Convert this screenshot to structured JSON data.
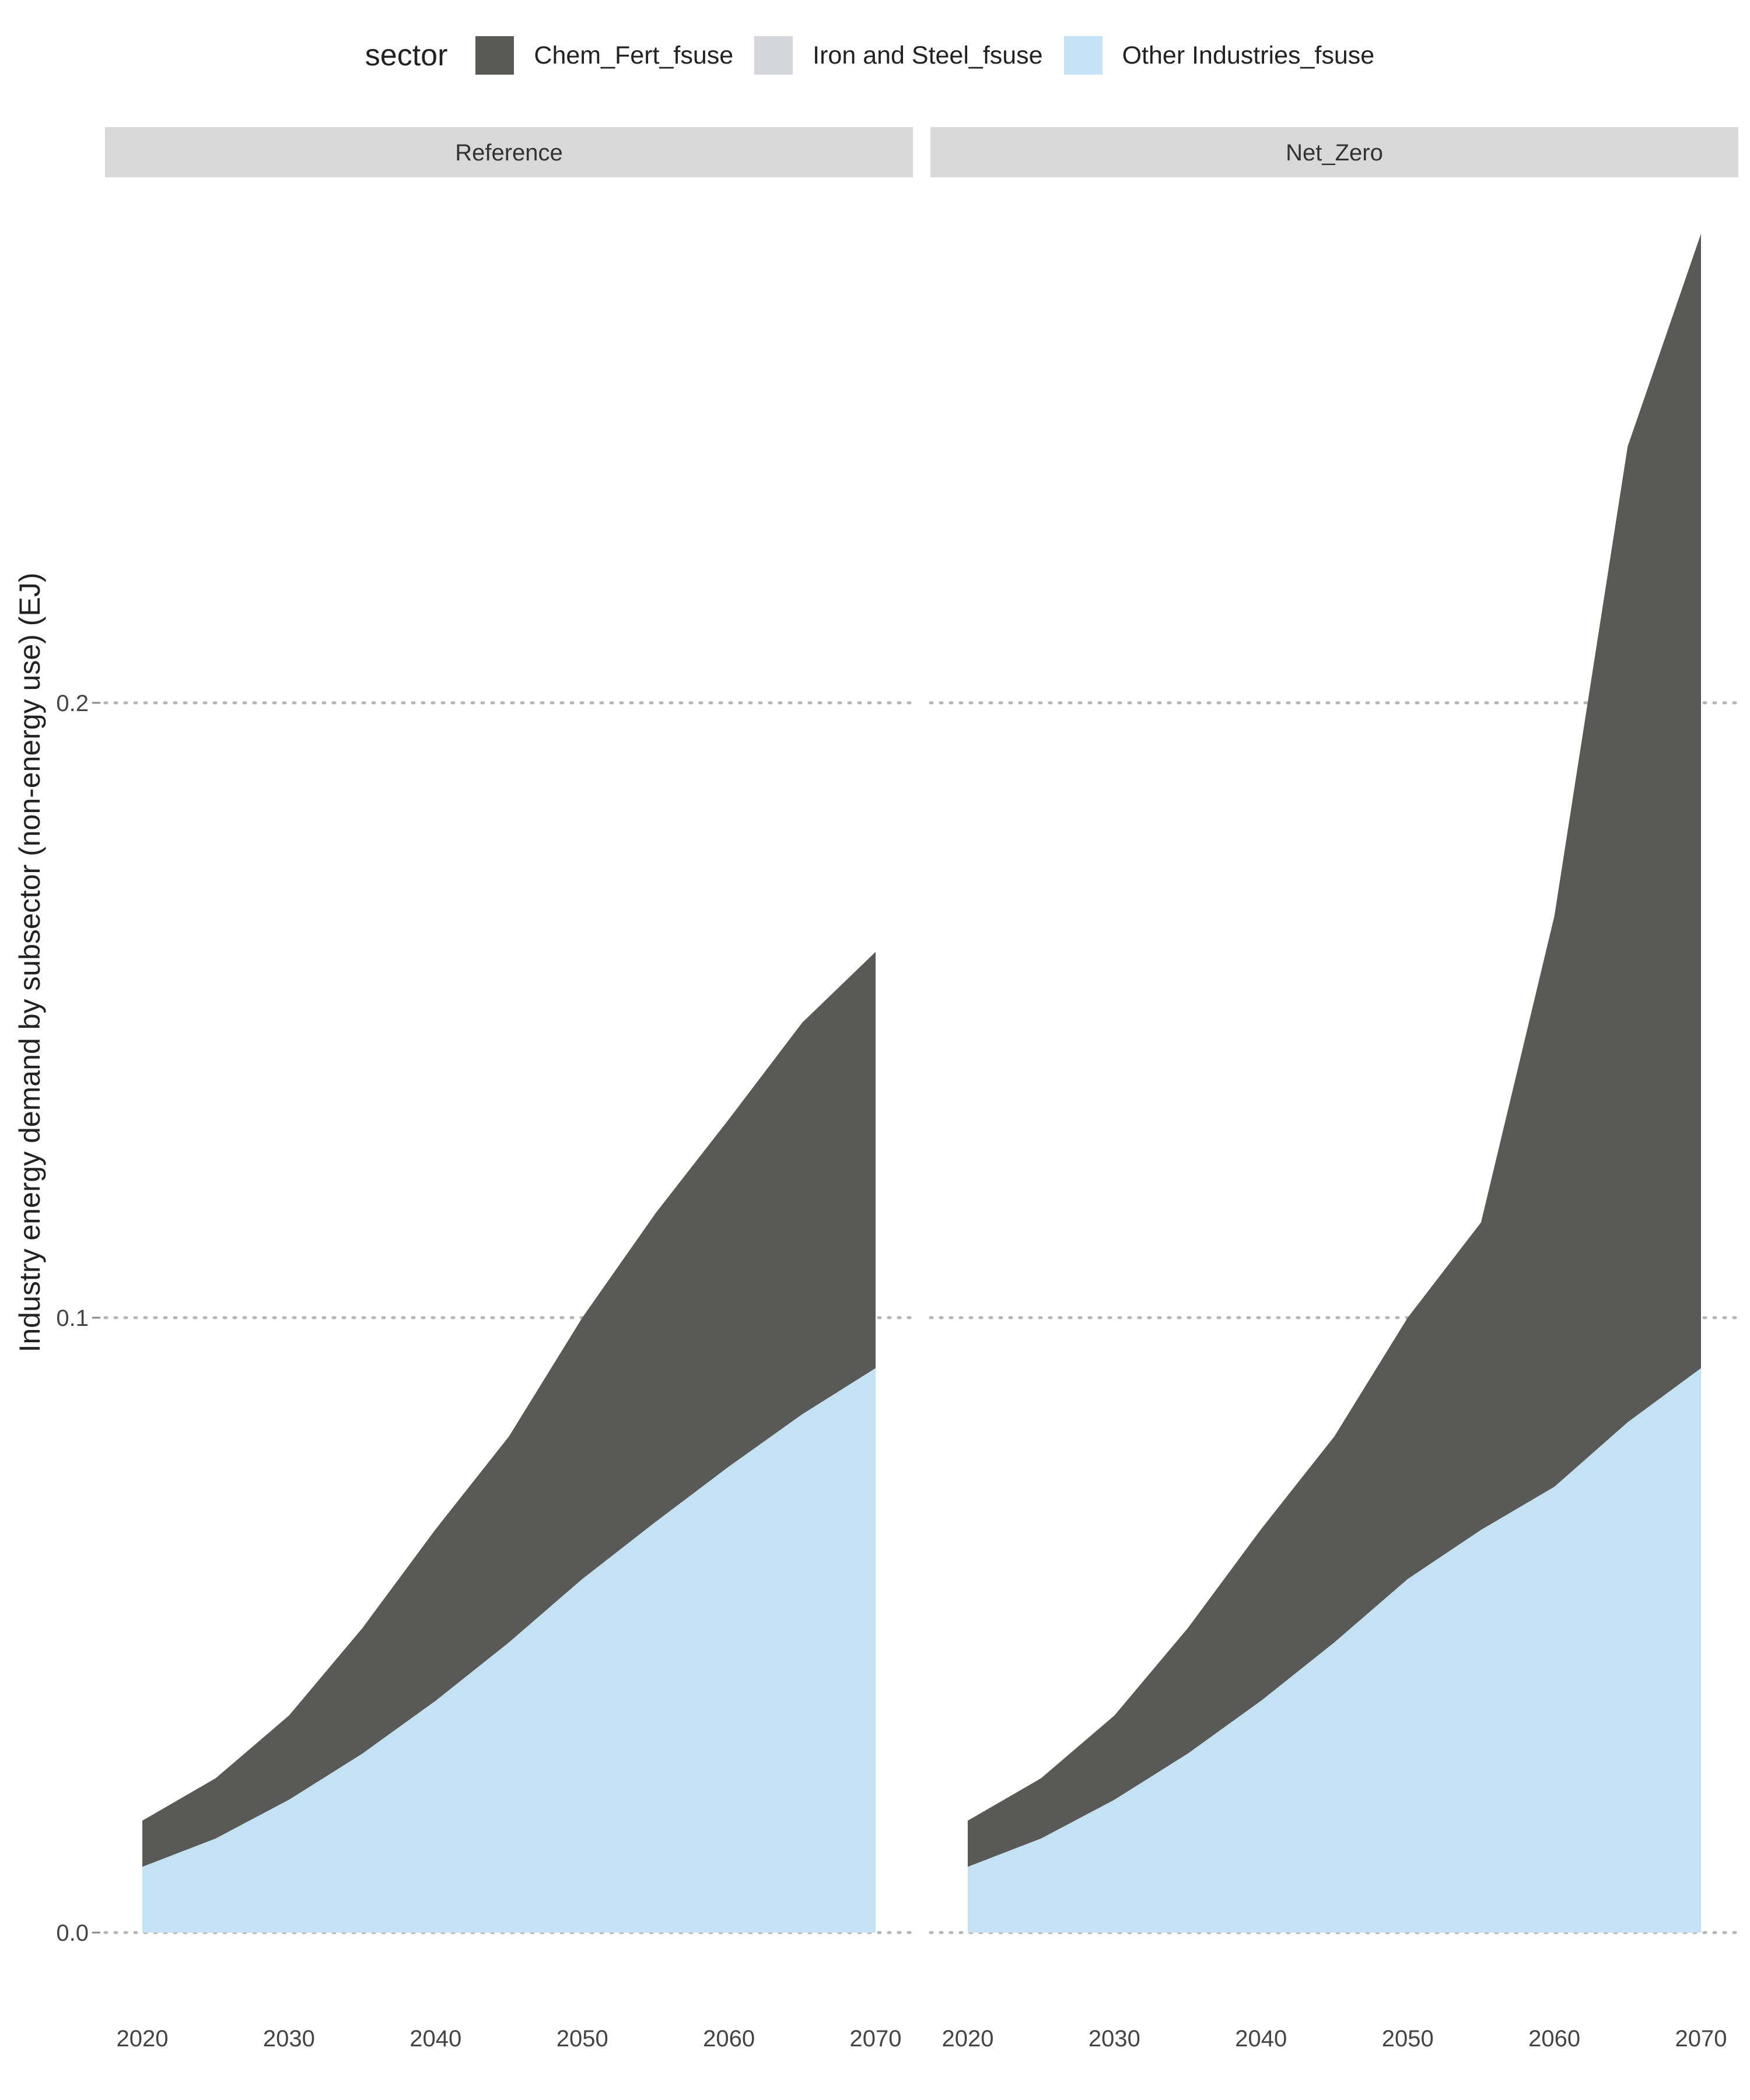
{
  "legend": {
    "title": "sector",
    "items": [
      {
        "label": "Chem_Fert_fsuse",
        "color": "#595958"
      },
      {
        "label": "Iron and Steel_fsuse",
        "color": "#d5d5dc"
      },
      {
        "label": "Other Industries_fsuse",
        "color": "#c3e3f4"
      }
    ]
  },
  "chart_data": {
    "type": "area",
    "stacked": true,
    "ylabel": "Industry energy demand by subsector (non-energy use) (EJ)",
    "xlabel": "",
    "x": [
      2020,
      2025,
      2030,
      2035,
      2040,
      2045,
      2050,
      2055,
      2060,
      2065,
      2070
    ],
    "x_ticks": [
      2020,
      2030,
      2040,
      2050,
      2060,
      2070
    ],
    "y_ticks": [
      "0.0",
      "0.1",
      "0.2"
    ],
    "y_tick_values": [
      0.0,
      0.1,
      0.2
    ],
    "ylim": [
      -0.013,
      0.283
    ],
    "grid": "horizontal dotted",
    "legend_position": "top",
    "panels": [
      {
        "title": "Reference",
        "series": [
          {
            "name": "Other Industries_fsuse",
            "color": "#c3e3f4",
            "values": [
              0.0107,
              0.0153,
              0.0216,
              0.0291,
              0.0377,
              0.0472,
              0.0575,
              0.0668,
              0.0758,
              0.0843,
              0.0918
            ]
          },
          {
            "name": "Iron and Steel_fsuse",
            "color": "#d5d5dc",
            "values": [
              0,
              0,
              0,
              0,
              0,
              0,
              0,
              0,
              0,
              0,
              0
            ]
          },
          {
            "name": "Chem_Fert_fsuse",
            "color": "#595958",
            "values": [
              0.0075,
              0.0098,
              0.0137,
              0.0204,
              0.0279,
              0.0335,
              0.0425,
              0.0502,
              0.0565,
              0.0637,
              0.0677
            ]
          }
        ]
      },
      {
        "title": "Net_Zero",
        "series": [
          {
            "name": "Other Industries_fsuse",
            "color": "#c3e3f4",
            "values": [
              0.0107,
              0.0153,
              0.0216,
              0.0291,
              0.0377,
              0.0472,
              0.0575,
              0.0655,
              0.0725,
              0.083,
              0.0918
            ]
          },
          {
            "name": "Iron and Steel_fsuse",
            "color": "#d5d5dc",
            "values": [
              0,
              0,
              0,
              0,
              0,
              0,
              0,
              0,
              0,
              0,
              0
            ]
          },
          {
            "name": "Chem_Fert_fsuse",
            "color": "#595958",
            "values": [
              0.0075,
              0.0098,
              0.0137,
              0.0204,
              0.0279,
              0.0335,
              0.0425,
              0.05,
              0.0928,
              0.1587,
              0.1845
            ]
          }
        ]
      }
    ]
  }
}
